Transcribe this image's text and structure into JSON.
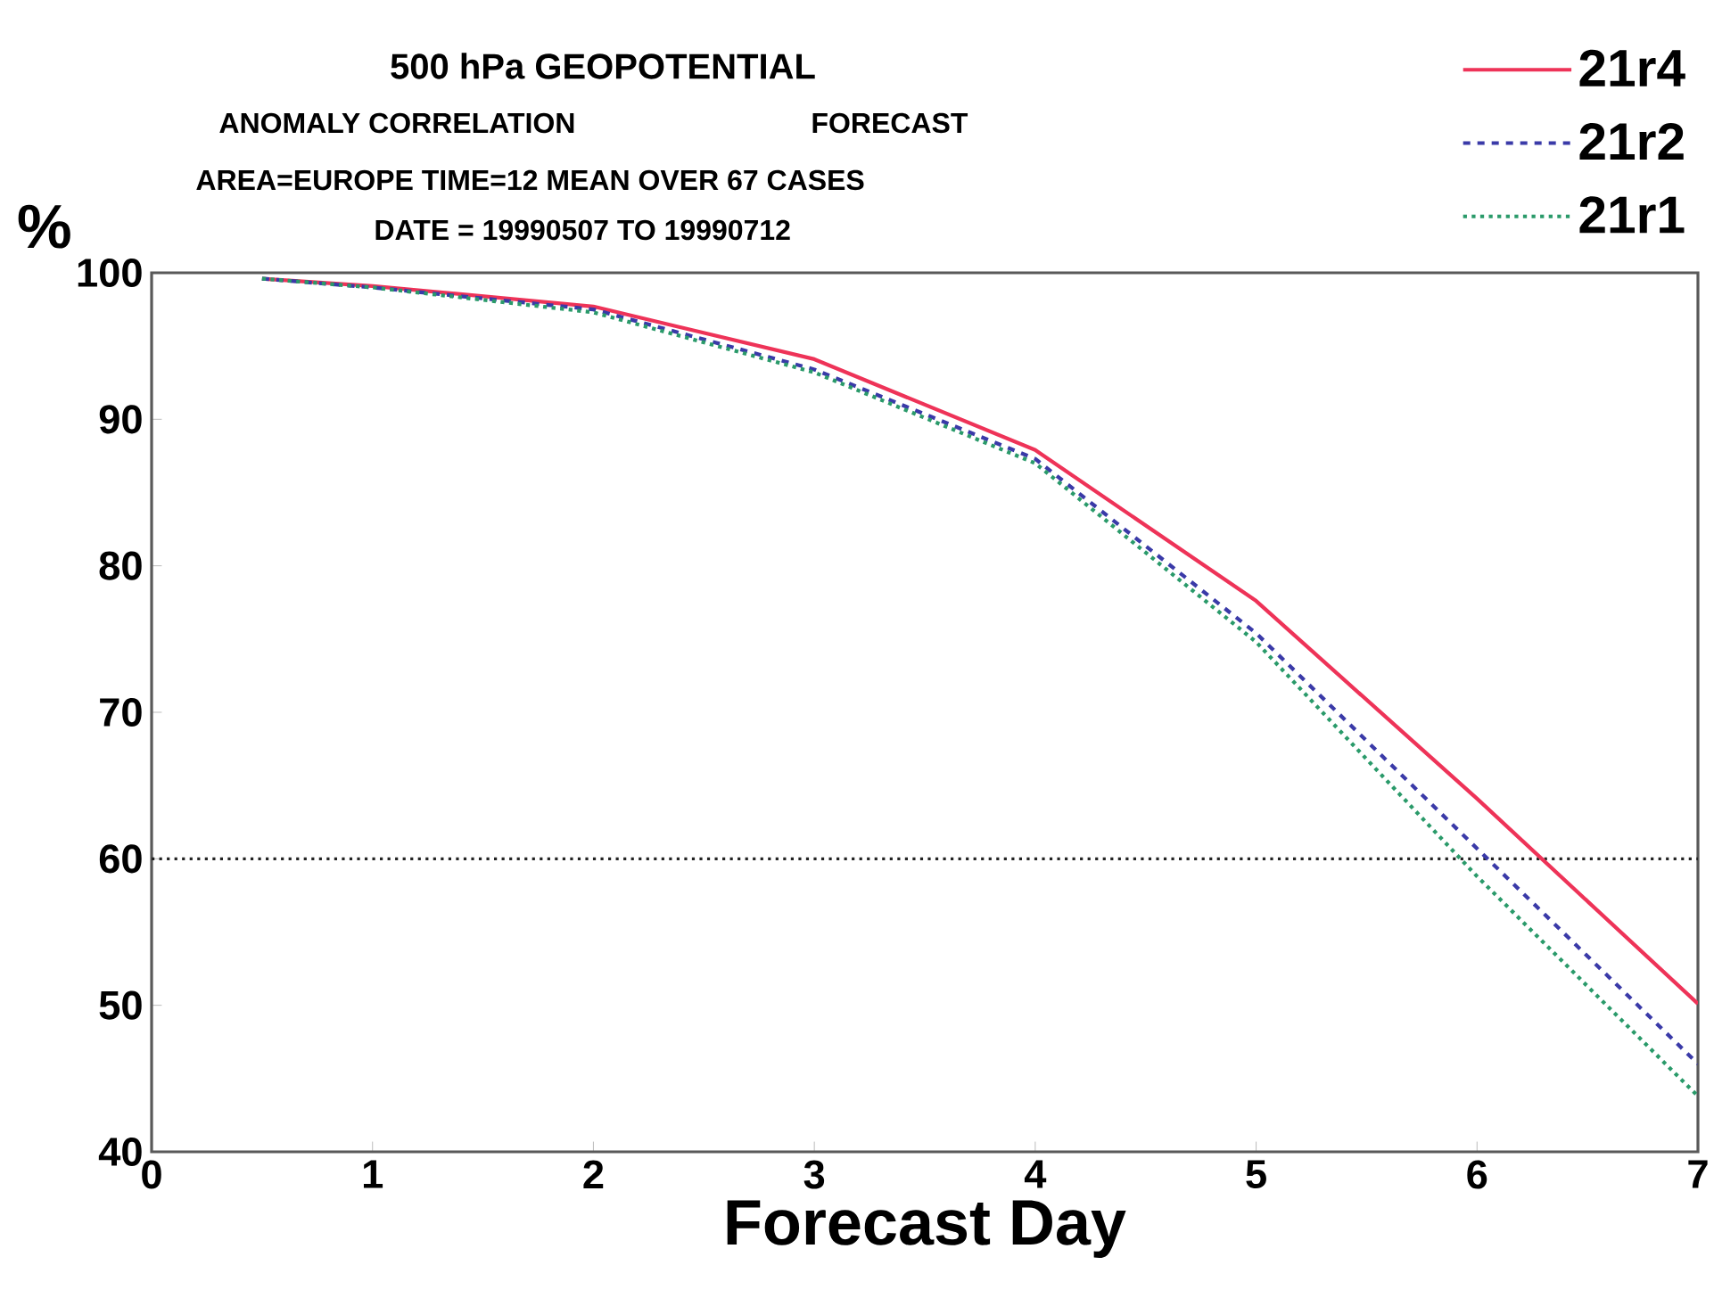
{
  "chart_data": {
    "type": "line",
    "title": "500 hPa GEOPOTENTIAL",
    "subtitle": "ANOMALY CORRELATION",
    "annotations": [
      "FORECAST",
      "AREA=EUROPE   TIME=12   MEAN OVER  67 CASES",
      "DATE = 19990507 TO 19990712"
    ],
    "xlabel": "Forecast Day",
    "ylabel": "%",
    "x": [
      0.5,
      1,
      2,
      3,
      4,
      5,
      6,
      7
    ],
    "series": [
      {
        "name": "21r4",
        "color": "#ee3358",
        "line_style": "solid",
        "values": [
          99.6,
          99.1,
          97.7,
          94.1,
          87.9,
          77.6,
          64.1,
          50.1
        ]
      },
      {
        "name": "21r2",
        "color": "#3a3aa8",
        "line_style": "dashed",
        "values": [
          99.6,
          99.0,
          97.5,
          93.4,
          87.3,
          75.4,
          60.7,
          46.0
        ]
      },
      {
        "name": "21r1",
        "color": "#2a9a6a",
        "line_style": "dotted",
        "values": [
          99.6,
          99.0,
          97.3,
          93.2,
          87.0,
          74.8,
          58.8,
          43.8
        ]
      }
    ],
    "xlim": [
      0,
      7
    ],
    "xticks": [
      0,
      1,
      2,
      3,
      4,
      5,
      6,
      7
    ],
    "ylim": [
      40,
      100
    ],
    "yticks": [
      40,
      50,
      60,
      70,
      80,
      90,
      100
    ],
    "ref_lines": [
      {
        "axis": "y",
        "value": 60,
        "color": "#222222",
        "line_style": "dotted"
      }
    ],
    "grid": false,
    "legend": "top right",
    "marker": "none"
  }
}
